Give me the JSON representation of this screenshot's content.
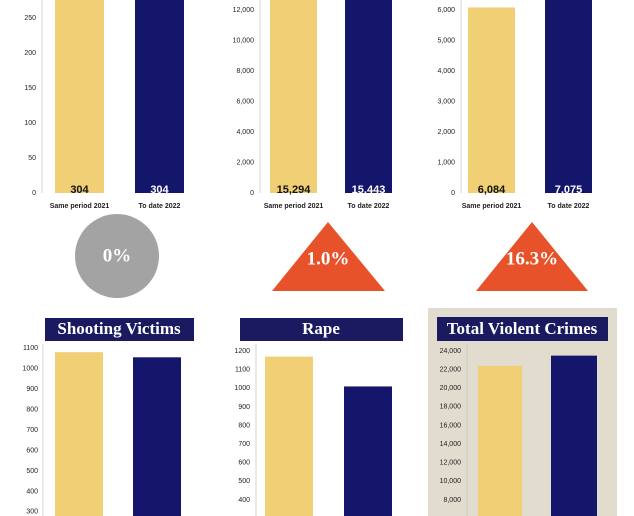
{
  "chart_data": [
    {
      "type": "bar",
      "categories": [
        "Same period 2021",
        "To date 2022"
      ],
      "values": [
        304,
        304
      ],
      "value_labels": [
        "304",
        "304"
      ],
      "colors": [
        "#f0cf75",
        "#14166b"
      ],
      "ylim": [
        0,
        276
      ],
      "yticks": [
        0,
        50,
        100,
        150,
        200,
        250
      ],
      "change": "0%"
    },
    {
      "type": "bar",
      "categories": [
        "Same period 2021",
        "To date 2022"
      ],
      "values": [
        15294,
        15443
      ],
      "value_labels": [
        "15,294",
        "15,443"
      ],
      "colors": [
        "#f0cf75",
        "#14166b"
      ],
      "ylim": [
        0,
        12656
      ],
      "yticks": [
        0,
        {
          "value": 2000,
          "label": "2,000"
        },
        {
          "value": 4000,
          "label": "4,000"
        },
        {
          "value": 6000,
          "label": "6,000"
        },
        {
          "value": 8000,
          "label": "8,000"
        },
        {
          "value": 10000,
          "label": "10,000"
        },
        {
          "value": 12000,
          "label": "12,000"
        }
      ],
      "change": "1.0%"
    },
    {
      "type": "bar",
      "categories": [
        "Same period 2021",
        "To date 2022"
      ],
      "values": [
        6084,
        7075
      ],
      "value_labels": [
        "6,084",
        "7,075"
      ],
      "colors": [
        "#f0cf75",
        "#14166b"
      ],
      "ylim": [
        0,
        6328
      ],
      "yticks": [
        0,
        {
          "value": 1000,
          "label": "1,000"
        },
        {
          "value": 2000,
          "label": "2,000"
        },
        {
          "value": 3000,
          "label": "3,000"
        },
        {
          "value": 4000,
          "label": "4,000"
        },
        {
          "value": 5000,
          "label": "5,000"
        },
        {
          "value": 6000,
          "label": "6,000"
        }
      ],
      "change": "16.3%"
    },
    {
      "type": "bar",
      "title": "Shooting Victims",
      "values": [
        1080,
        1055
      ],
      "colors": [
        "#f0cf75",
        "#14166b"
      ],
      "ylim": [
        280,
        1120
      ],
      "yticks": [
        300,
        400,
        500,
        600,
        700,
        800,
        900,
        1000,
        1100
      ]
    },
    {
      "type": "bar",
      "title": "Rape",
      "values": [
        1170,
        1010
      ],
      "colors": [
        "#f0cf75",
        "#14166b"
      ],
      "ylim": [
        314,
        1238
      ],
      "yticks": [
        400,
        500,
        600,
        700,
        800,
        900,
        1000,
        1100,
        1200
      ]
    },
    {
      "type": "bar",
      "title": "Total Violent Crimes",
      "values": [
        22400,
        23500
      ],
      "colors": [
        "#f0cf75",
        "#14166b"
      ],
      "ylim": [
        6280,
        24750
      ],
      "yticks": [
        {
          "value": 8000,
          "label": "8,000"
        },
        {
          "value": 10000,
          "label": "10,000"
        },
        {
          "value": 12000,
          "label": "12,000"
        },
        {
          "value": 14000,
          "label": "14,000"
        },
        {
          "value": 16000,
          "label": "16,000"
        },
        {
          "value": 18000,
          "label": "18,000"
        },
        {
          "value": 20000,
          "label": "20,000"
        },
        {
          "value": 22000,
          "label": "22,000"
        },
        {
          "value": 24000,
          "label": "24,000"
        }
      ]
    }
  ]
}
